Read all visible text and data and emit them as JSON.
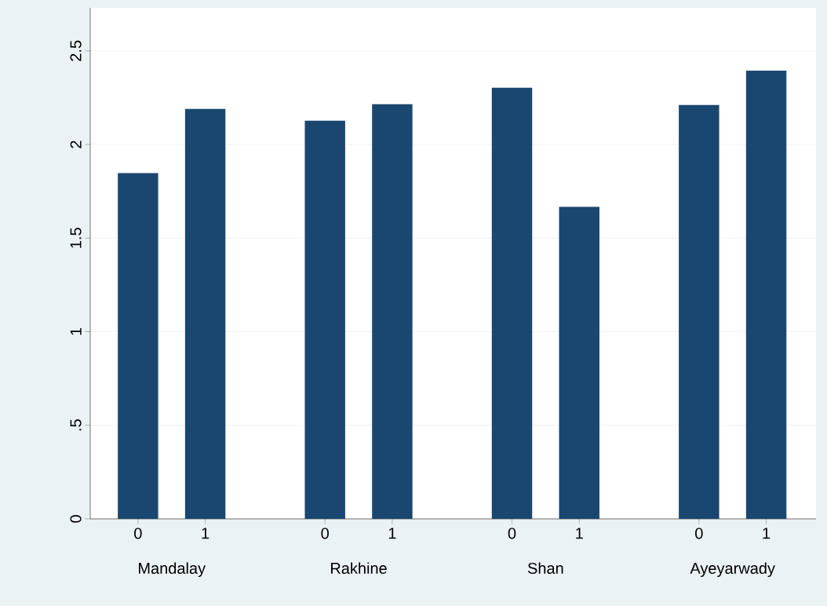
{
  "chart_data": {
    "type": "bar",
    "categories": [
      "0",
      "1",
      "0",
      "1",
      "0",
      "1",
      "0",
      "1"
    ],
    "values": [
      1.847,
      2.19,
      2.127,
      2.215,
      2.303,
      1.667,
      2.211,
      2.395
    ],
    "color": "#1a476f",
    "ylim": [
      0,
      2.73
    ],
    "yticks": [
      0,
      {
        "value": 0.5,
        "label": ".5"
      },
      1,
      1.5,
      2,
      2.5
    ],
    "grid": "y",
    "annotations": [
      "Mandalay",
      "Rakhine",
      "Shan",
      "Ayeyarwady"
    ]
  }
}
